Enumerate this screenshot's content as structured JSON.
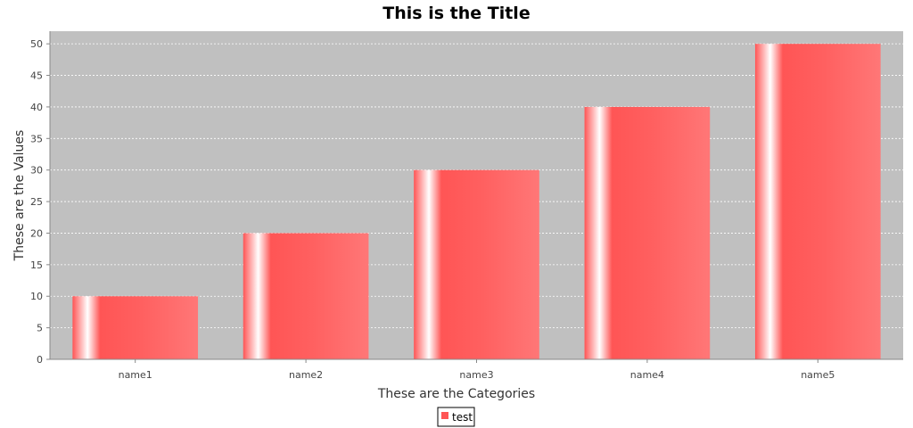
{
  "chart_data": {
    "type": "bar",
    "title": "This is the Title",
    "xlabel": "These are the Categories",
    "ylabel": "These are the Values",
    "categories": [
      "name1",
      "name2",
      "name3",
      "name4",
      "name5"
    ],
    "series": [
      {
        "name": "test",
        "values": [
          10,
          20,
          30,
          40,
          50
        ],
        "color": "#ff5555"
      }
    ],
    "ylim": [
      0,
      52
    ],
    "yticks": [
      0,
      5,
      10,
      15,
      20,
      25,
      30,
      35,
      40,
      45,
      50
    ],
    "grid": true,
    "legend_position": "bottom-center",
    "plot_background": "#c0c0c0",
    "gridline_color": "#ffffff"
  }
}
